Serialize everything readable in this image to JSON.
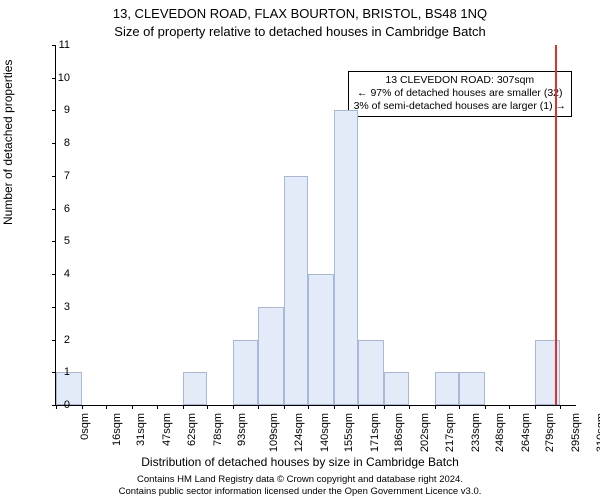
{
  "chart": {
    "type": "histogram",
    "title_line1": "13, CLEVEDON ROAD, FLAX BOURTON, BRISTOL, BS48 1NQ",
    "title_line2": "Size of property relative to detached houses in Cambridge Batch",
    "ylabel": "Number of detached properties",
    "xaxis_title": "Distribution of detached houses by size in Cambridge Batch",
    "ylim": [
      0,
      11
    ],
    "yticks": [
      0,
      1,
      2,
      3,
      4,
      5,
      6,
      7,
      8,
      9,
      10,
      11
    ],
    "xtick_positions": [
      0,
      16,
      31,
      47,
      62,
      78,
      93,
      109,
      124,
      140,
      155,
      171,
      186,
      202,
      217,
      233,
      248,
      264,
      279,
      295,
      310
    ],
    "xtick_labels": [
      "0sqm",
      "16sqm",
      "31sqm",
      "47sqm",
      "62sqm",
      "78sqm",
      "93sqm",
      "109sqm",
      "124sqm",
      "140sqm",
      "155sqm",
      "171sqm",
      "186sqm",
      "202sqm",
      "217sqm",
      "233sqm",
      "248sqm",
      "264sqm",
      "279sqm",
      "295sqm",
      "310sqm"
    ],
    "bars": [
      {
        "x0": 0,
        "x1": 16,
        "y": 1
      },
      {
        "x0": 78,
        "x1": 93,
        "y": 1
      },
      {
        "x0": 109,
        "x1": 124,
        "y": 2
      },
      {
        "x0": 124,
        "x1": 140,
        "y": 3
      },
      {
        "x0": 140,
        "x1": 155,
        "y": 7
      },
      {
        "x0": 155,
        "x1": 171,
        "y": 4
      },
      {
        "x0": 171,
        "x1": 186,
        "y": 9
      },
      {
        "x0": 186,
        "x1": 202,
        "y": 2
      },
      {
        "x0": 202,
        "x1": 217,
        "y": 1
      },
      {
        "x0": 233,
        "x1": 248,
        "y": 1
      },
      {
        "x0": 248,
        "x1": 264,
        "y": 1
      },
      {
        "x0": 295,
        "x1": 310,
        "y": 2
      }
    ],
    "x_domain": [
      0,
      320
    ],
    "bar_fill": "#e3ebf8",
    "bar_border": "#a8b8d8",
    "reference_x": 307,
    "reference_color": "#e03030",
    "annotation": {
      "line1": "13 CLEVEDON ROAD: 307sqm",
      "line2": "← 97% of detached houses are smaller (32)",
      "line3": "3% of semi-detached houses are larger (1) →"
    },
    "footer_line1": "Contains HM Land Registry data © Crown copyright and database right 2024.",
    "footer_line2": "Contains public sector information licensed under the Open Government Licence v3.0.",
    "plot_bg": "#ffffff",
    "title_fontsize": 13,
    "label_fontsize": 12,
    "tick_fontsize": 11
  }
}
